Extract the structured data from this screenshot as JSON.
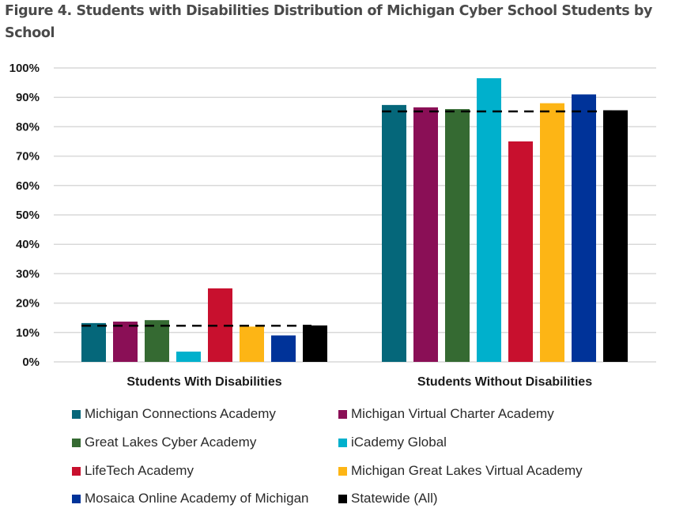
{
  "figure": {
    "title": "Figure 4. Students with Disabilities Distribution of Michigan Cyber School Students by School"
  },
  "chart_data": {
    "type": "bar",
    "title": "Figure 4. Students with Disabilities Distribution of Michigan Cyber School Students by School",
    "xlabel": "",
    "ylabel": "",
    "categories": [
      "Students With Disabilities",
      "Students Without Disabilities"
    ],
    "ylim": [
      0,
      100
    ],
    "yticks": [
      0,
      10,
      20,
      30,
      40,
      50,
      60,
      70,
      80,
      90,
      100
    ],
    "ytick_labels": [
      "0%",
      "10%",
      "20%",
      "30%",
      "40%",
      "50%",
      "60%",
      "70%",
      "80%",
      "90%",
      "100%"
    ],
    "grid": true,
    "legend_position": "bottom",
    "series": [
      {
        "name": "Michigan Connections Academy",
        "color": "#05677a",
        "values": [
          13.2,
          87.4
        ]
      },
      {
        "name": "Michigan Virtual Charter Academy",
        "color": "#8a0f56",
        "values": [
          13.7,
          86.6
        ]
      },
      {
        "name": "Great Lakes Cyber Academy",
        "color": "#356a32",
        "values": [
          14.2,
          86.0
        ]
      },
      {
        "name": "iCademy Global",
        "color": "#00b0cc",
        "values": [
          3.5,
          96.5
        ]
      },
      {
        "name": "LifeTech Academy",
        "color": "#c8102e",
        "values": [
          25.0,
          75.0
        ]
      },
      {
        "name": "Michigan Great Lakes Virtual Academy",
        "color": "#fdb515",
        "values": [
          12.0,
          88.0
        ]
      },
      {
        "name": "Mosaica Online Academy of Michigan",
        "color": "#003399",
        "values": [
          9.0,
          91.0
        ]
      },
      {
        "name": "Statewide (All)",
        "color": "#000000",
        "values": [
          12.4,
          85.6
        ]
      }
    ],
    "reference_line": {
      "style": "dashed",
      "color": "#000000",
      "values": [
        12.3,
        85.2
      ],
      "label": "Statewide (All)"
    }
  }
}
